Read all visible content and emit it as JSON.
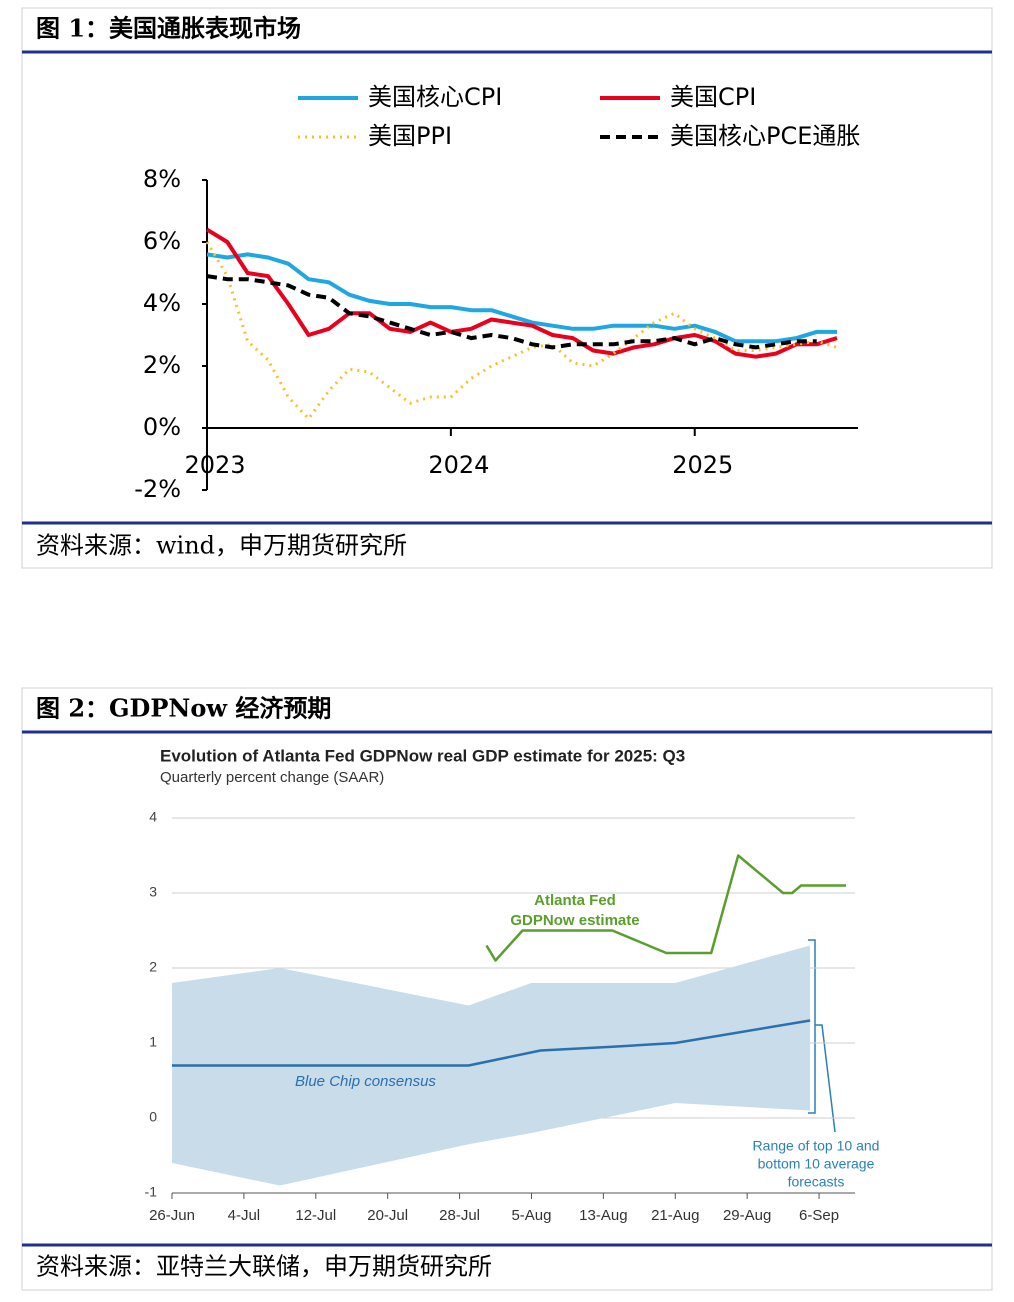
{
  "figures": [
    {
      "caption": "图 1：美国通胀表现市场",
      "source": "资料来源：wind，申万期货研究所"
    },
    {
      "caption": "图 2：GDPNow 经济预期",
      "source": "资料来源：亚特兰大联储，申万期货研究所"
    }
  ],
  "chart_data": [
    {
      "type": "line",
      "categories": [
        "2023",
        null,
        null,
        null,
        null,
        null,
        null,
        null,
        null,
        null,
        null,
        null,
        "2024",
        null,
        null,
        null,
        null,
        null,
        null,
        null,
        null,
        null,
        null,
        null,
        "2025",
        null,
        null,
        null,
        null,
        null,
        null,
        null
      ],
      "ylim": [
        -2,
        8
      ],
      "yticks": [
        {
          "value": -2,
          "label": "-2%"
        },
        {
          "value": 0,
          "label": "0%"
        },
        {
          "value": 2,
          "label": "2%"
        },
        {
          "value": 4,
          "label": "4%"
        },
        {
          "value": 6,
          "label": "6%"
        },
        {
          "value": 8,
          "label": "8%"
        }
      ],
      "series": [
        {
          "name": "美国核心CPI",
          "color": "#1ea7e1",
          "style": "solid",
          "values": [
            5.6,
            5.5,
            5.6,
            5.5,
            5.3,
            4.8,
            4.7,
            4.3,
            4.1,
            4.0,
            4.0,
            3.9,
            3.9,
            3.8,
            3.8,
            3.6,
            3.4,
            3.3,
            3.2,
            3.2,
            3.3,
            3.3,
            3.3,
            3.2,
            3.3,
            3.1,
            2.8,
            2.8,
            2.8,
            2.9,
            3.1,
            3.1
          ]
        },
        {
          "name": "美国CPI",
          "color": "#e8001c",
          "style": "solid",
          "values": [
            6.4,
            6.0,
            5.0,
            4.9,
            4.0,
            3.0,
            3.2,
            3.7,
            3.7,
            3.2,
            3.1,
            3.4,
            3.1,
            3.2,
            3.5,
            3.4,
            3.3,
            3.0,
            2.9,
            2.5,
            2.4,
            2.6,
            2.7,
            2.9,
            3.0,
            2.8,
            2.4,
            2.3,
            2.4,
            2.7,
            2.7,
            2.9
          ]
        },
        {
          "name": "美国PPI",
          "color": "#fbbf24",
          "style": "dotted",
          "values": [
            6.0,
            4.9,
            2.8,
            2.2,
            1.0,
            0.3,
            1.2,
            1.9,
            1.8,
            1.3,
            0.8,
            1.0,
            1.0,
            1.6,
            2.0,
            2.3,
            2.6,
            2.7,
            2.1,
            2.0,
            2.4,
            2.9,
            3.4,
            3.7,
            3.2,
            2.9,
            2.5,
            2.5,
            2.6,
            2.7,
            2.8,
            2.6
          ]
        },
        {
          "name": "美国核心PCE通胀",
          "color": "#000000",
          "style": "dashed",
          "values": [
            4.9,
            4.8,
            4.8,
            4.7,
            4.6,
            4.3,
            4.2,
            3.7,
            3.6,
            3.4,
            3.2,
            3.0,
            3.1,
            2.9,
            3.0,
            2.9,
            2.7,
            2.6,
            2.7,
            2.7,
            2.7,
            2.8,
            2.8,
            2.9,
            2.7,
            2.9,
            2.7,
            2.6,
            2.7,
            2.8,
            2.8,
            null
          ]
        }
      ]
    },
    {
      "type": "line",
      "title": "Evolution of Atlanta Fed GDPNow real GDP estimate for 2025: Q3",
      "subtitle": "Quarterly percent change (SAAR)",
      "xlim": [
        0,
        76
      ],
      "xticks": [
        {
          "value": 0,
          "label": "26-Jun"
        },
        {
          "value": 8,
          "label": "4-Jul"
        },
        {
          "value": 16,
          "label": "12-Jul"
        },
        {
          "value": 24,
          "label": "20-Jul"
        },
        {
          "value": 32,
          "label": "28-Jul"
        },
        {
          "value": 40,
          "label": "5-Aug"
        },
        {
          "value": 48,
          "label": "13-Aug"
        },
        {
          "value": 56,
          "label": "21-Aug"
        },
        {
          "value": 64,
          "label": "29-Aug"
        },
        {
          "value": 72,
          "label": "6-Sep"
        }
      ],
      "ylim": [
        -1,
        4
      ],
      "yticks": [
        -1,
        0,
        1,
        2,
        3,
        4
      ],
      "grid": true,
      "series": [
        {
          "kind": "band",
          "name_lines": [
            "Range of top 10 and",
            "bottom 10 average",
            "forecasts"
          ],
          "color": "#c8dcea",
          "x": [
            0,
            12,
            33,
            40,
            56,
            71
          ],
          "upper": [
            1.8,
            2.0,
            1.5,
            1.8,
            1.8,
            2.3
          ],
          "lower": [
            -0.6,
            -0.9,
            -0.35,
            -0.2,
            0.2,
            0.1
          ]
        },
        {
          "kind": "line",
          "name_lines": [
            "Blue Chip consensus"
          ],
          "color": "#2a6fb0",
          "x": [
            0,
            33,
            41,
            49,
            56,
            71
          ],
          "values": [
            0.7,
            0.7,
            0.9,
            0.95,
            1.0,
            1.3
          ]
        },
        {
          "kind": "line",
          "name_lines": [
            "Atlanta Fed",
            "GDPNow estimate"
          ],
          "color": "#5a9e2b",
          "x": [
            35,
            36,
            39,
            49,
            55,
            60,
            63,
            68,
            69,
            70,
            75
          ],
          "values": [
            2.3,
            2.1,
            2.5,
            2.5,
            2.2,
            2.2,
            3.5,
            3.0,
            3.0,
            3.1,
            3.1
          ]
        }
      ]
    }
  ]
}
